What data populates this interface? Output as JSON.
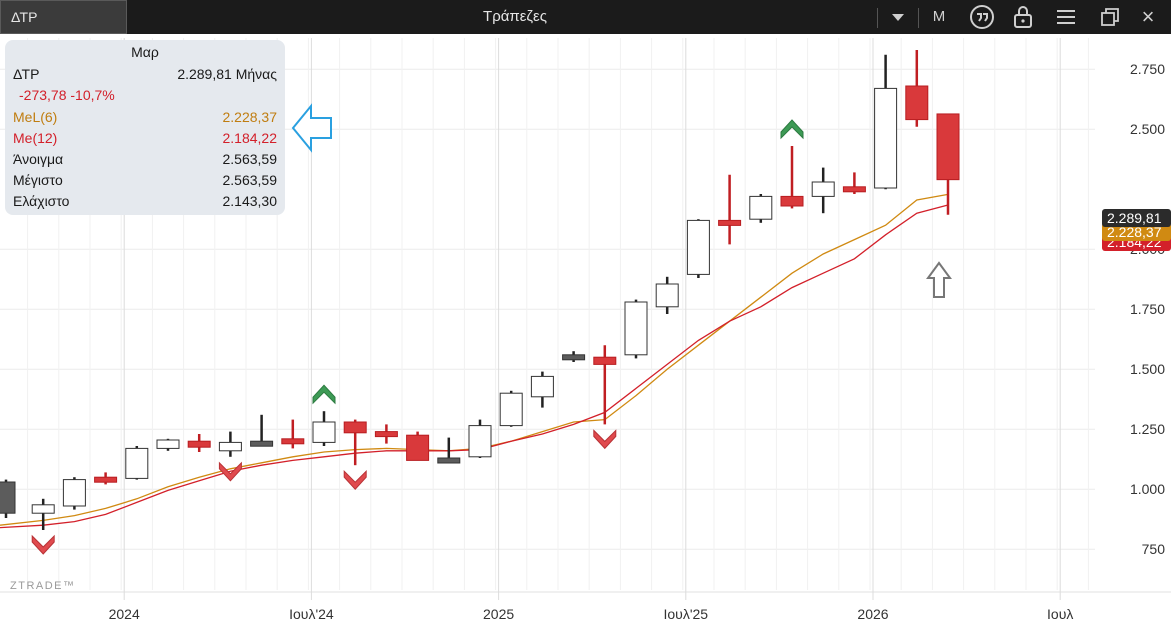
{
  "window": {
    "symbol": "ΔΤΡ",
    "title": "Τράπεζες",
    "dropdown_icon": "caret-down-icon",
    "period_button": "M",
    "icons": [
      "quote-icon",
      "lock-icon",
      "menu-icon",
      "restore-icon",
      "close-icon"
    ],
    "close_label": "×"
  },
  "info_panel": {
    "date": "Μαρ",
    "symbol": "ΔΤΡ",
    "last_value": "2.289,81",
    "period": "Μήνας",
    "change": "-273,78 -10,7%",
    "ma_long_label": "MeL(6)",
    "ma_long_value": "2.228,37",
    "ma_label": "Me(12)",
    "ma_value": "2.184,22",
    "open_label": "Άνοιγμα",
    "open_value": "2.563,59",
    "high_label": "Μέγιστο",
    "high_value": "2.563,59",
    "low_label": "Ελάχιστο",
    "low_value": "2.143,30"
  },
  "watermark": "ZTRADE™",
  "colors": {
    "up": "#ffffff",
    "down": "#d9393b",
    "flat": "#5c5c5c",
    "ma_long": "#d08a12",
    "ma": "#d3202a",
    "buy_signal": "#3d9a55",
    "sell_signal": "#e04a4e",
    "info_arrow": "#2aa0e0"
  },
  "chart_data": {
    "type": "candlestick",
    "y_ticks": [
      "750",
      "1.000",
      "1.250",
      "1.500",
      "1.750",
      "2.000",
      "2.500",
      "2.750"
    ],
    "x_ticks": [
      "2024",
      "Ιουλ'24",
      "2025",
      "Ιουλ'25",
      "2026",
      "Ιουλ"
    ],
    "ylim": [
      580,
      2880
    ],
    "grid": true,
    "price_labels": [
      "2.289,81",
      "2.228,37",
      "2.184,22"
    ],
    "candles": [
      {
        "o": 900,
        "h": 1040,
        "l": 880,
        "c": 1030,
        "k": "flat"
      },
      {
        "o": 900,
        "h": 960,
        "l": 830,
        "c": 935,
        "k": "up"
      },
      {
        "o": 930,
        "h": 1050,
        "l": 915,
        "c": 1040,
        "k": "up"
      },
      {
        "o": 1050,
        "h": 1070,
        "l": 1020,
        "c": 1040,
        "k": "down"
      },
      {
        "o": 1045,
        "h": 1180,
        "l": 1040,
        "c": 1170,
        "k": "up"
      },
      {
        "o": 1170,
        "h": 1210,
        "l": 1160,
        "c": 1205,
        "k": "up"
      },
      {
        "o": 1200,
        "h": 1230,
        "l": 1155,
        "c": 1175,
        "k": "down"
      },
      {
        "o": 1160,
        "h": 1240,
        "l": 1135,
        "c": 1195,
        "k": "up"
      },
      {
        "o": 1195,
        "h": 1310,
        "l": 1190,
        "c": 1200,
        "k": "flat"
      },
      {
        "o": 1210,
        "h": 1290,
        "l": 1170,
        "c": 1190,
        "k": "down"
      },
      {
        "o": 1195,
        "h": 1325,
        "l": 1180,
        "c": 1280,
        "k": "up"
      },
      {
        "o": 1280,
        "h": 1290,
        "l": 1100,
        "c": 1235,
        "k": "down"
      },
      {
        "o": 1240,
        "h": 1270,
        "l": 1190,
        "c": 1225,
        "k": "down"
      },
      {
        "o": 1225,
        "h": 1240,
        "l": 1120,
        "c": 1120,
        "k": "down"
      },
      {
        "o": 1120,
        "h": 1215,
        "l": 1110,
        "c": 1130,
        "k": "flat"
      },
      {
        "o": 1135,
        "h": 1290,
        "l": 1130,
        "c": 1265,
        "k": "up"
      },
      {
        "o": 1265,
        "h": 1410,
        "l": 1260,
        "c": 1400,
        "k": "up"
      },
      {
        "o": 1385,
        "h": 1490,
        "l": 1340,
        "c": 1470,
        "k": "up"
      },
      {
        "o": 1560,
        "h": 1575,
        "l": 1530,
        "c": 1540,
        "k": "flat"
      },
      {
        "o": 1550,
        "h": 1600,
        "l": 1270,
        "c": 1520,
        "k": "down"
      },
      {
        "o": 1560,
        "h": 1790,
        "l": 1545,
        "c": 1780,
        "k": "up"
      },
      {
        "o": 1760,
        "h": 1885,
        "l": 1730,
        "c": 1855,
        "k": "up"
      },
      {
        "o": 1895,
        "h": 2125,
        "l": 1880,
        "c": 2120,
        "k": "up"
      },
      {
        "o": 2120,
        "h": 2310,
        "l": 2020,
        "c": 2120,
        "k": "down"
      },
      {
        "o": 2125,
        "h": 2230,
        "l": 2110,
        "c": 2220,
        "k": "up"
      },
      {
        "o": 2220,
        "h": 2430,
        "l": 2170,
        "c": 2180,
        "k": "down"
      },
      {
        "o": 2220,
        "h": 2340,
        "l": 2150,
        "c": 2280,
        "k": "up"
      },
      {
        "o": 2260,
        "h": 2320,
        "l": 2230,
        "c": 2240,
        "k": "down"
      },
      {
        "o": 2255,
        "h": 2810,
        "l": 2250,
        "c": 2670,
        "k": "up"
      },
      {
        "o": 2680,
        "h": 2830,
        "l": 2510,
        "c": 2540,
        "k": "down"
      },
      {
        "o": 2563.59,
        "h": 2563.59,
        "l": 2143.3,
        "c": 2289.81,
        "k": "down"
      }
    ],
    "series": [
      {
        "name": "MeL(6)",
        "values": [
          850,
          870,
          890,
          920,
          960,
          1010,
          1050,
          1085,
          1110,
          1135,
          1155,
          1165,
          1170,
          1165,
          1160,
          1170,
          1200,
          1240,
          1280,
          1290,
          1390,
          1500,
          1600,
          1700,
          1800,
          1900,
          1980,
          2040,
          2100,
          2205,
          2228.37
        ]
      },
      {
        "name": "Me(12)",
        "values": [
          840,
          850,
          865,
          895,
          945,
          995,
          1035,
          1075,
          1100,
          1120,
          1135,
          1150,
          1160,
          1160,
          1160,
          1165,
          1200,
          1230,
          1270,
          1320,
          1420,
          1520,
          1620,
          1700,
          1760,
          1840,
          1900,
          1960,
          2060,
          2150,
          2184.22
        ]
      }
    ],
    "buy_signals": [
      10,
      25
    ],
    "sell_signals": [
      1,
      7,
      11,
      19
    ]
  }
}
